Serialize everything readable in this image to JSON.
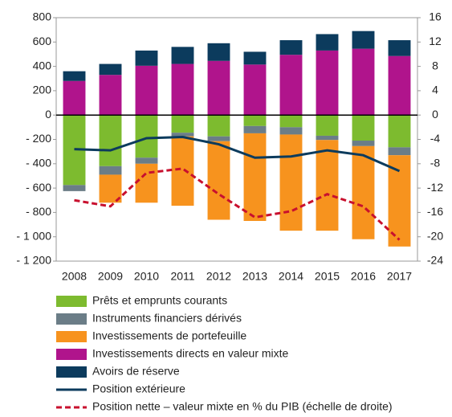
{
  "chart_data": {
    "type": "bar",
    "categories": [
      "2008",
      "2009",
      "2010",
      "2011",
      "2012",
      "2013",
      "2014",
      "2015",
      "2016",
      "2017"
    ],
    "series": [
      {
        "name": "Prêts et emprunts courants",
        "color": "#7dbb2f",
        "values": [
          -575,
          -420,
          -350,
          -145,
          -175,
          -90,
          -100,
          -170,
          -210,
          -265
        ]
      },
      {
        "name": "Instruments financiers dérivés",
        "color": "#6b7d87",
        "values": [
          -50,
          -70,
          -50,
          -30,
          -40,
          -60,
          -60,
          -35,
          -45,
          -65
        ]
      },
      {
        "name": "Investissements de portefeuille",
        "color": "#f7931e",
        "values": [
          0,
          -230,
          -320,
          -570,
          -645,
          -720,
          -790,
          -745,
          -765,
          -750
        ]
      },
      {
        "name": "Investissements directs en valeur mixte",
        "color": "#b0148c",
        "values": [
          280,
          330,
          405,
          420,
          445,
          415,
          495,
          530,
          545,
          485
        ]
      },
      {
        "name": "Avoirs de réserve",
        "color": "#0c3b5d",
        "values": [
          80,
          90,
          125,
          140,
          145,
          105,
          120,
          135,
          145,
          130
        ]
      },
      {
        "name": "Position extérieure",
        "type": "line",
        "color": "#0c3b5d",
        "values": [
          -280,
          -290,
          -190,
          -180,
          -240,
          -350,
          -340,
          -290,
          -330,
          -460
        ]
      },
      {
        "name": "Position nette – valeur mixte en % du PIB (échelle de droite)",
        "type": "line",
        "axis": "y2",
        "dashed": true,
        "color": "#c8102e",
        "values": [
          -14,
          -15,
          -9.5,
          -8.8,
          -13,
          -16.8,
          -15.8,
          -13,
          -15,
          -20.5
        ]
      }
    ],
    "ylim": [
      -1200,
      800
    ],
    "yticks": [
      {
        "value": -1200,
        "label": "- 1 200"
      },
      {
        "value": -1000,
        "label": "- 1 000"
      },
      {
        "value": -800,
        "label": "- 800"
      },
      {
        "value": -600,
        "label": "- 600"
      },
      {
        "value": -400,
        "label": "- 400"
      },
      {
        "value": -200,
        "label": "- 200"
      },
      0,
      200,
      400,
      600,
      800
    ],
    "y2lim": [
      -24,
      16
    ],
    "y2ticks": [
      -24,
      -20,
      -16,
      -12,
      -8,
      -4,
      0,
      4,
      8,
      12,
      16
    ]
  }
}
